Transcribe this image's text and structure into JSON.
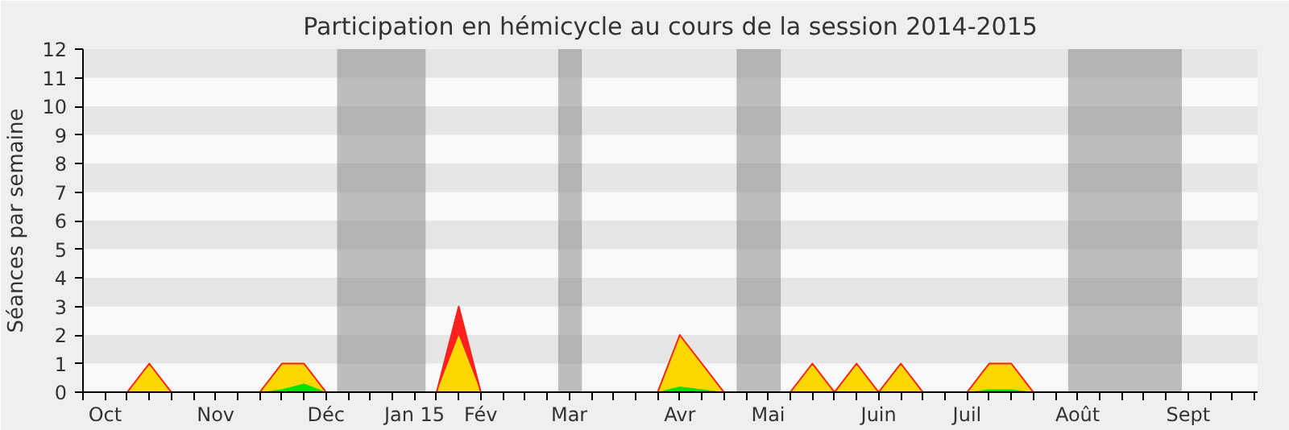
{
  "chart_data": {
    "type": "area",
    "stacked": true,
    "title": "Participation en hémicycle au cours de la session 2014-2015",
    "ylabel": "Séances par semaine",
    "x": [
      "2014-09-29",
      "2014-10-06",
      "2014-10-13",
      "2014-10-20",
      "2014-10-27",
      "2014-11-03",
      "2014-11-10",
      "2014-11-17",
      "2014-11-24",
      "2014-12-01",
      "2014-12-08",
      "2014-12-15",
      "2014-12-22",
      "2014-12-29",
      "2015-01-05",
      "2015-01-12",
      "2015-01-19",
      "2015-01-26",
      "2015-02-02",
      "2015-02-09",
      "2015-02-16",
      "2015-02-23",
      "2015-03-02",
      "2015-03-09",
      "2015-03-16",
      "2015-03-23",
      "2015-03-30",
      "2015-04-06",
      "2015-04-13",
      "2015-04-20",
      "2015-04-27",
      "2015-05-04",
      "2015-05-11",
      "2015-05-18",
      "2015-05-25",
      "2015-06-01",
      "2015-06-08",
      "2015-06-15",
      "2015-06-22",
      "2015-06-29",
      "2015-07-06",
      "2015-07-13",
      "2015-07-20",
      "2015-07-27",
      "2015-08-03",
      "2015-08-10",
      "2015-08-17",
      "2015-08-24",
      "2015-08-31",
      "2015-09-07",
      "2015-09-14",
      "2015-09-21",
      "2015-09-28",
      "2015-10-05"
    ],
    "series": [
      {
        "color": "#00e000",
        "values": [
          0,
          0,
          0,
          0,
          0,
          0,
          0,
          0,
          0,
          0.1,
          0.3,
          0,
          0,
          0,
          0,
          0,
          0,
          0,
          0,
          0,
          0,
          0,
          0,
          0,
          0,
          0,
          0,
          0.2,
          0.1,
          0,
          0,
          0,
          0,
          0,
          0,
          0,
          0,
          0,
          0,
          0,
          0,
          0.1,
          0.1,
          0,
          0,
          0,
          0,
          0,
          0,
          0,
          0,
          0,
          0,
          0
        ]
      },
      {
        "color": "#ffd700",
        "values": [
          0,
          0,
          0,
          1,
          0,
          0,
          0,
          0,
          0,
          0.9,
          0.7,
          0,
          0,
          0,
          0,
          0,
          0,
          2,
          0,
          0,
          0,
          0,
          0,
          0,
          0,
          0,
          0,
          1.8,
          0.9,
          0,
          0,
          0,
          0,
          1,
          0,
          1,
          0,
          1,
          0,
          0,
          0,
          0.9,
          0.9,
          0,
          0,
          0,
          0,
          0,
          0,
          0,
          0,
          0,
          0,
          0
        ]
      },
      {
        "color": "#ff2020",
        "values": [
          0,
          0,
          0,
          0,
          0,
          0,
          0,
          0,
          0,
          0,
          0,
          0,
          0,
          0,
          0,
          0,
          0,
          1,
          0,
          0,
          0,
          0,
          0,
          0,
          0,
          0,
          0,
          0,
          0,
          0,
          0,
          0,
          0,
          0,
          0,
          0,
          0,
          0,
          0,
          0,
          0,
          0,
          0,
          0,
          0,
          0,
          0,
          0,
          0,
          0,
          0,
          0,
          0,
          0
        ]
      }
    ],
    "bands": [
      {
        "axis": "x",
        "from": "2014-12-18T12:00",
        "to": "2015-01-15T12:00",
        "color": "#808080"
      },
      {
        "axis": "x",
        "from": "2015-02-26T12:00",
        "to": "2015-03-06",
        "color": "#808080"
      },
      {
        "axis": "x",
        "from": "2015-04-24",
        "to": "2015-05-08",
        "color": "#808080"
      },
      {
        "axis": "x",
        "from": "2015-08-07",
        "to": "2015-09-12",
        "color": "#808080"
      }
    ],
    "xlim": [
      "2014-09-29",
      "2015-10-06"
    ],
    "xticks": [
      {
        "value": "2014-09-29",
        "label": null
      },
      {
        "value": "2014-10-06",
        "label": "Oct"
      },
      {
        "value": "2014-10-13",
        "label": null
      },
      {
        "value": "2014-10-20",
        "label": null
      },
      {
        "value": "2014-10-27",
        "label": null
      },
      {
        "value": "2014-11-03",
        "label": null
      },
      {
        "value": "2014-11-10",
        "label": "Nov"
      },
      {
        "value": "2014-11-17",
        "label": null
      },
      {
        "value": "2014-11-24",
        "label": null
      },
      {
        "value": "2014-12-01",
        "label": null
      },
      {
        "value": "2014-12-08",
        "label": null
      },
      {
        "value": "2014-12-15",
        "label": "Déc"
      },
      {
        "value": "2014-12-22",
        "label": null
      },
      {
        "value": "2014-12-29",
        "label": null
      },
      {
        "value": "2015-01-05",
        "label": null
      },
      {
        "value": "2015-01-12",
        "label": "Jan 15"
      },
      {
        "value": "2015-01-19",
        "label": null
      },
      {
        "value": "2015-01-26",
        "label": null
      },
      {
        "value": "2015-02-02",
        "label": "Fév"
      },
      {
        "value": "2015-02-09",
        "label": null
      },
      {
        "value": "2015-02-16",
        "label": null
      },
      {
        "value": "2015-02-23",
        "label": null
      },
      {
        "value": "2015-03-02",
        "label": "Mar"
      },
      {
        "value": "2015-03-09",
        "label": null
      },
      {
        "value": "2015-03-16",
        "label": null
      },
      {
        "value": "2015-03-23",
        "label": null
      },
      {
        "value": "2015-03-30",
        "label": null
      },
      {
        "value": "2015-04-06",
        "label": "Avr"
      },
      {
        "value": "2015-04-13",
        "label": null
      },
      {
        "value": "2015-04-20",
        "label": null
      },
      {
        "value": "2015-04-27",
        "label": null
      },
      {
        "value": "2015-05-04",
        "label": "Mai"
      },
      {
        "value": "2015-05-11",
        "label": null
      },
      {
        "value": "2015-05-18",
        "label": null
      },
      {
        "value": "2015-05-25",
        "label": null
      },
      {
        "value": "2015-06-01",
        "label": null
      },
      {
        "value": "2015-06-08",
        "label": "Juin"
      },
      {
        "value": "2015-06-15",
        "label": null
      },
      {
        "value": "2015-06-22",
        "label": null
      },
      {
        "value": "2015-06-29",
        "label": null
      },
      {
        "value": "2015-07-06",
        "label": "Juil"
      },
      {
        "value": "2015-07-13",
        "label": null
      },
      {
        "value": "2015-07-20",
        "label": null
      },
      {
        "value": "2015-07-27",
        "label": null
      },
      {
        "value": "2015-08-03",
        "label": null
      },
      {
        "value": "2015-08-10",
        "label": "Août"
      },
      {
        "value": "2015-08-17",
        "label": null
      },
      {
        "value": "2015-08-24",
        "label": null
      },
      {
        "value": "2015-08-31",
        "label": null
      },
      {
        "value": "2015-09-07",
        "label": null
      },
      {
        "value": "2015-09-14",
        "label": "Sept"
      },
      {
        "value": "2015-09-21",
        "label": null
      },
      {
        "value": "2015-09-28",
        "label": null
      },
      {
        "value": "2015-10-05",
        "label": null
      }
    ],
    "ylim": [
      0,
      12
    ],
    "yticks": [
      0,
      1,
      2,
      3,
      4,
      5,
      6,
      7,
      8,
      9,
      10,
      11,
      12
    ]
  }
}
